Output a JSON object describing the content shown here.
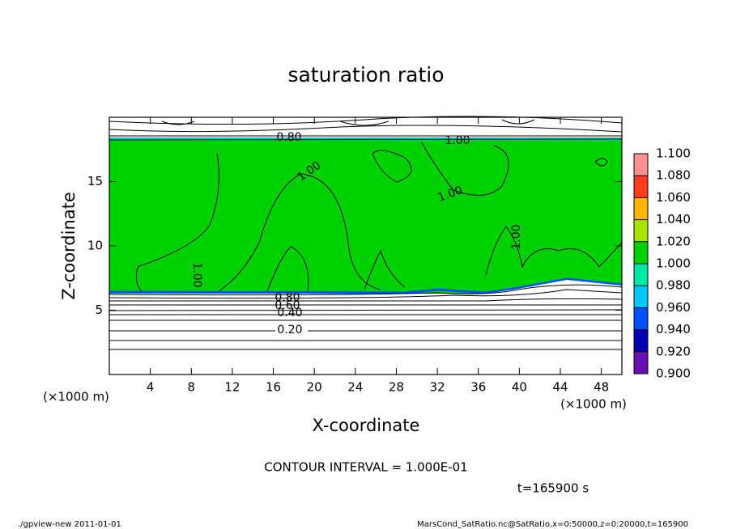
{
  "chart_data": {
    "type": "contour",
    "title": "saturation ratio",
    "x_label": "X-coordinate",
    "y_label": "Z-coordinate",
    "x_unit": "(×1000 m)",
    "y_unit": "(×1000 m)",
    "xlim": [
      0,
      50
    ],
    "ylim": [
      0,
      20
    ],
    "xticks": [
      4,
      8,
      12,
      16,
      20,
      24,
      28,
      32,
      36,
      40,
      44,
      48
    ],
    "yticks": [
      5,
      10,
      15
    ],
    "contour_labels": [
      "0.80",
      "1.00",
      "1.00",
      "1.00",
      "1.00",
      "1.00",
      "0.80",
      "0.60",
      "0.40",
      "0.20"
    ],
    "colorbar": {
      "ticks": [
        {
          "value": 0.9,
          "label": "0.900"
        },
        {
          "value": 0.92,
          "label": "0.920"
        },
        {
          "value": 0.94,
          "label": "0.940"
        },
        {
          "value": 0.96,
          "label": "0.960"
        },
        {
          "value": 0.98,
          "label": "0.980"
        },
        {
          "value": 1.0,
          "label": "1.000"
        },
        {
          "value": 1.02,
          "label": "1.020"
        },
        {
          "value": 1.04,
          "label": "1.040"
        },
        {
          "value": 1.06,
          "label": "1.060"
        },
        {
          "value": 1.08,
          "label": "1.080"
        },
        {
          "value": 1.1,
          "label": "1.100"
        }
      ],
      "colors": [
        "#6a10b0",
        "#0000b4",
        "#0050ff",
        "#00c8ff",
        "#00e8a8",
        "#00d200",
        "#a8e600",
        "#ffb400",
        "#ff3c1e",
        "#ff9090"
      ]
    },
    "contour_interval": "CONTOUR INTERVAL = 1.000E-01",
    "time_label": "t=165900 s",
    "footer_left": "./gpview-new  2011-01-01",
    "footer_right": "MarsCond_SatRatio.nc@SatRatio,x=0:50000,z=0:20000,t=165900"
  }
}
